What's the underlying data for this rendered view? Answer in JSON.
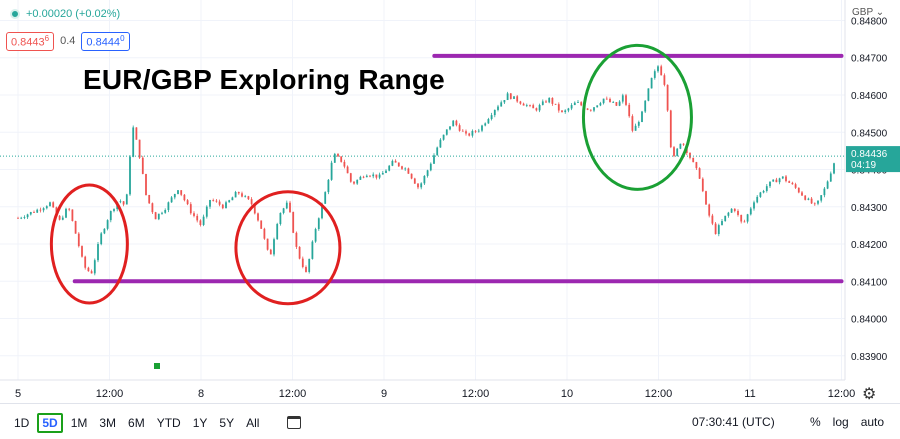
{
  "header": {
    "change": "+0.00020 (+0.02%)",
    "bid": "0.8443",
    "bid_sup": "6",
    "spread": "0.4",
    "ask": "0.8444",
    "ask_sup": "0",
    "currency": "GBP"
  },
  "chart_data": {
    "type": "candlestick",
    "title": "EUR/GBP Exploring Range",
    "y_ticks": [
      "0.84800",
      "0.84700",
      "0.84600",
      "0.84500",
      "0.84400",
      "0.84300",
      "0.84200",
      "0.84100",
      "0.84000",
      "0.83900"
    ],
    "ylim": [
      0.83835,
      0.84855
    ],
    "x_ticks": [
      "5",
      "12:00",
      "8",
      "12:00",
      "9",
      "12:00",
      "10",
      "12:00",
      "11",
      "12:00"
    ],
    "price_label": {
      "value": 0.84436,
      "text": "0.84436",
      "countdown": "04:19"
    },
    "range_lines": [
      {
        "level": 0.84705,
        "x_from_session": 4.55,
        "x_to_session": 9.0
      },
      {
        "level": 0.841,
        "x_from_session": 0.62,
        "x_to_session": 9.0
      }
    ],
    "highlights": [
      {
        "color": "#e02020",
        "center_session": 0.78,
        "level": 0.842
      },
      {
        "color": "#e02020",
        "center_session": 2.95,
        "level": 0.8419
      },
      {
        "color": "#1aa034",
        "center_session": 6.77,
        "level": 0.8454
      }
    ],
    "path": [
      [
        0.0,
        0.8427
      ],
      [
        0.2,
        0.8429
      ],
      [
        0.35,
        0.8431
      ],
      [
        0.45,
        0.8426
      ],
      [
        0.55,
        0.843
      ],
      [
        0.65,
        0.8421
      ],
      [
        0.72,
        0.8414
      ],
      [
        0.8,
        0.8412
      ],
      [
        0.9,
        0.8422
      ],
      [
        1.0,
        0.8428
      ],
      [
        1.1,
        0.8432
      ],
      [
        1.18,
        0.843
      ],
      [
        1.25,
        0.8452
      ],
      [
        1.32,
        0.8445
      ],
      [
        1.4,
        0.8433
      ],
      [
        1.5,
        0.8427
      ],
      [
        1.62,
        0.843
      ],
      [
        1.75,
        0.8435
      ],
      [
        1.88,
        0.8429
      ],
      [
        2.0,
        0.8425
      ],
      [
        2.1,
        0.8432
      ],
      [
        2.25,
        0.843
      ],
      [
        2.4,
        0.8434
      ],
      [
        2.55,
        0.8431
      ],
      [
        2.65,
        0.8425
      ],
      [
        2.75,
        0.8416
      ],
      [
        2.85,
        0.8428
      ],
      [
        2.95,
        0.8431
      ],
      [
        3.05,
        0.8418
      ],
      [
        3.15,
        0.8412
      ],
      [
        3.25,
        0.8424
      ],
      [
        3.35,
        0.8433
      ],
      [
        3.45,
        0.8444
      ],
      [
        3.55,
        0.8442
      ],
      [
        3.65,
        0.8436
      ],
      [
        3.8,
        0.8439
      ],
      [
        3.95,
        0.8438
      ],
      [
        4.1,
        0.8442
      ],
      [
        4.25,
        0.844
      ],
      [
        4.38,
        0.8435
      ],
      [
        4.48,
        0.844
      ],
      [
        4.6,
        0.8447
      ],
      [
        4.75,
        0.8453
      ],
      [
        4.9,
        0.8449
      ],
      [
        5.05,
        0.8451
      ],
      [
        5.2,
        0.8456
      ],
      [
        5.35,
        0.846
      ],
      [
        5.5,
        0.8458
      ],
      [
        5.65,
        0.8456
      ],
      [
        5.8,
        0.8459
      ],
      [
        5.95,
        0.8455
      ],
      [
        6.1,
        0.8458
      ],
      [
        6.25,
        0.8456
      ],
      [
        6.4,
        0.8459
      ],
      [
        6.55,
        0.8457
      ],
      [
        6.62,
        0.846
      ],
      [
        6.72,
        0.845
      ],
      [
        6.82,
        0.8455
      ],
      [
        6.92,
        0.8464
      ],
      [
        7.0,
        0.8468
      ],
      [
        7.08,
        0.8462
      ],
      [
        7.15,
        0.8442
      ],
      [
        7.25,
        0.8448
      ],
      [
        7.35,
        0.8443
      ],
      [
        7.45,
        0.8438
      ],
      [
        7.52,
        0.843
      ],
      [
        7.62,
        0.8423
      ],
      [
        7.72,
        0.8427
      ],
      [
        7.82,
        0.843
      ],
      [
        7.92,
        0.8425
      ],
      [
        8.05,
        0.8432
      ],
      [
        8.2,
        0.8436
      ],
      [
        8.35,
        0.8438
      ],
      [
        8.5,
        0.8435
      ],
      [
        8.62,
        0.8432
      ],
      [
        8.72,
        0.843
      ],
      [
        8.82,
        0.8435
      ],
      [
        8.92,
        0.8442
      ]
    ]
  },
  "marker_label": "",
  "time_ranges": [
    "1D",
    "5D",
    "1M",
    "3M",
    "6M",
    "YTD",
    "1Y",
    "5Y",
    "All"
  ],
  "active_range": "5D",
  "clock": "07:30:41 (UTC)",
  "toggles": [
    "%",
    "log",
    "auto"
  ]
}
